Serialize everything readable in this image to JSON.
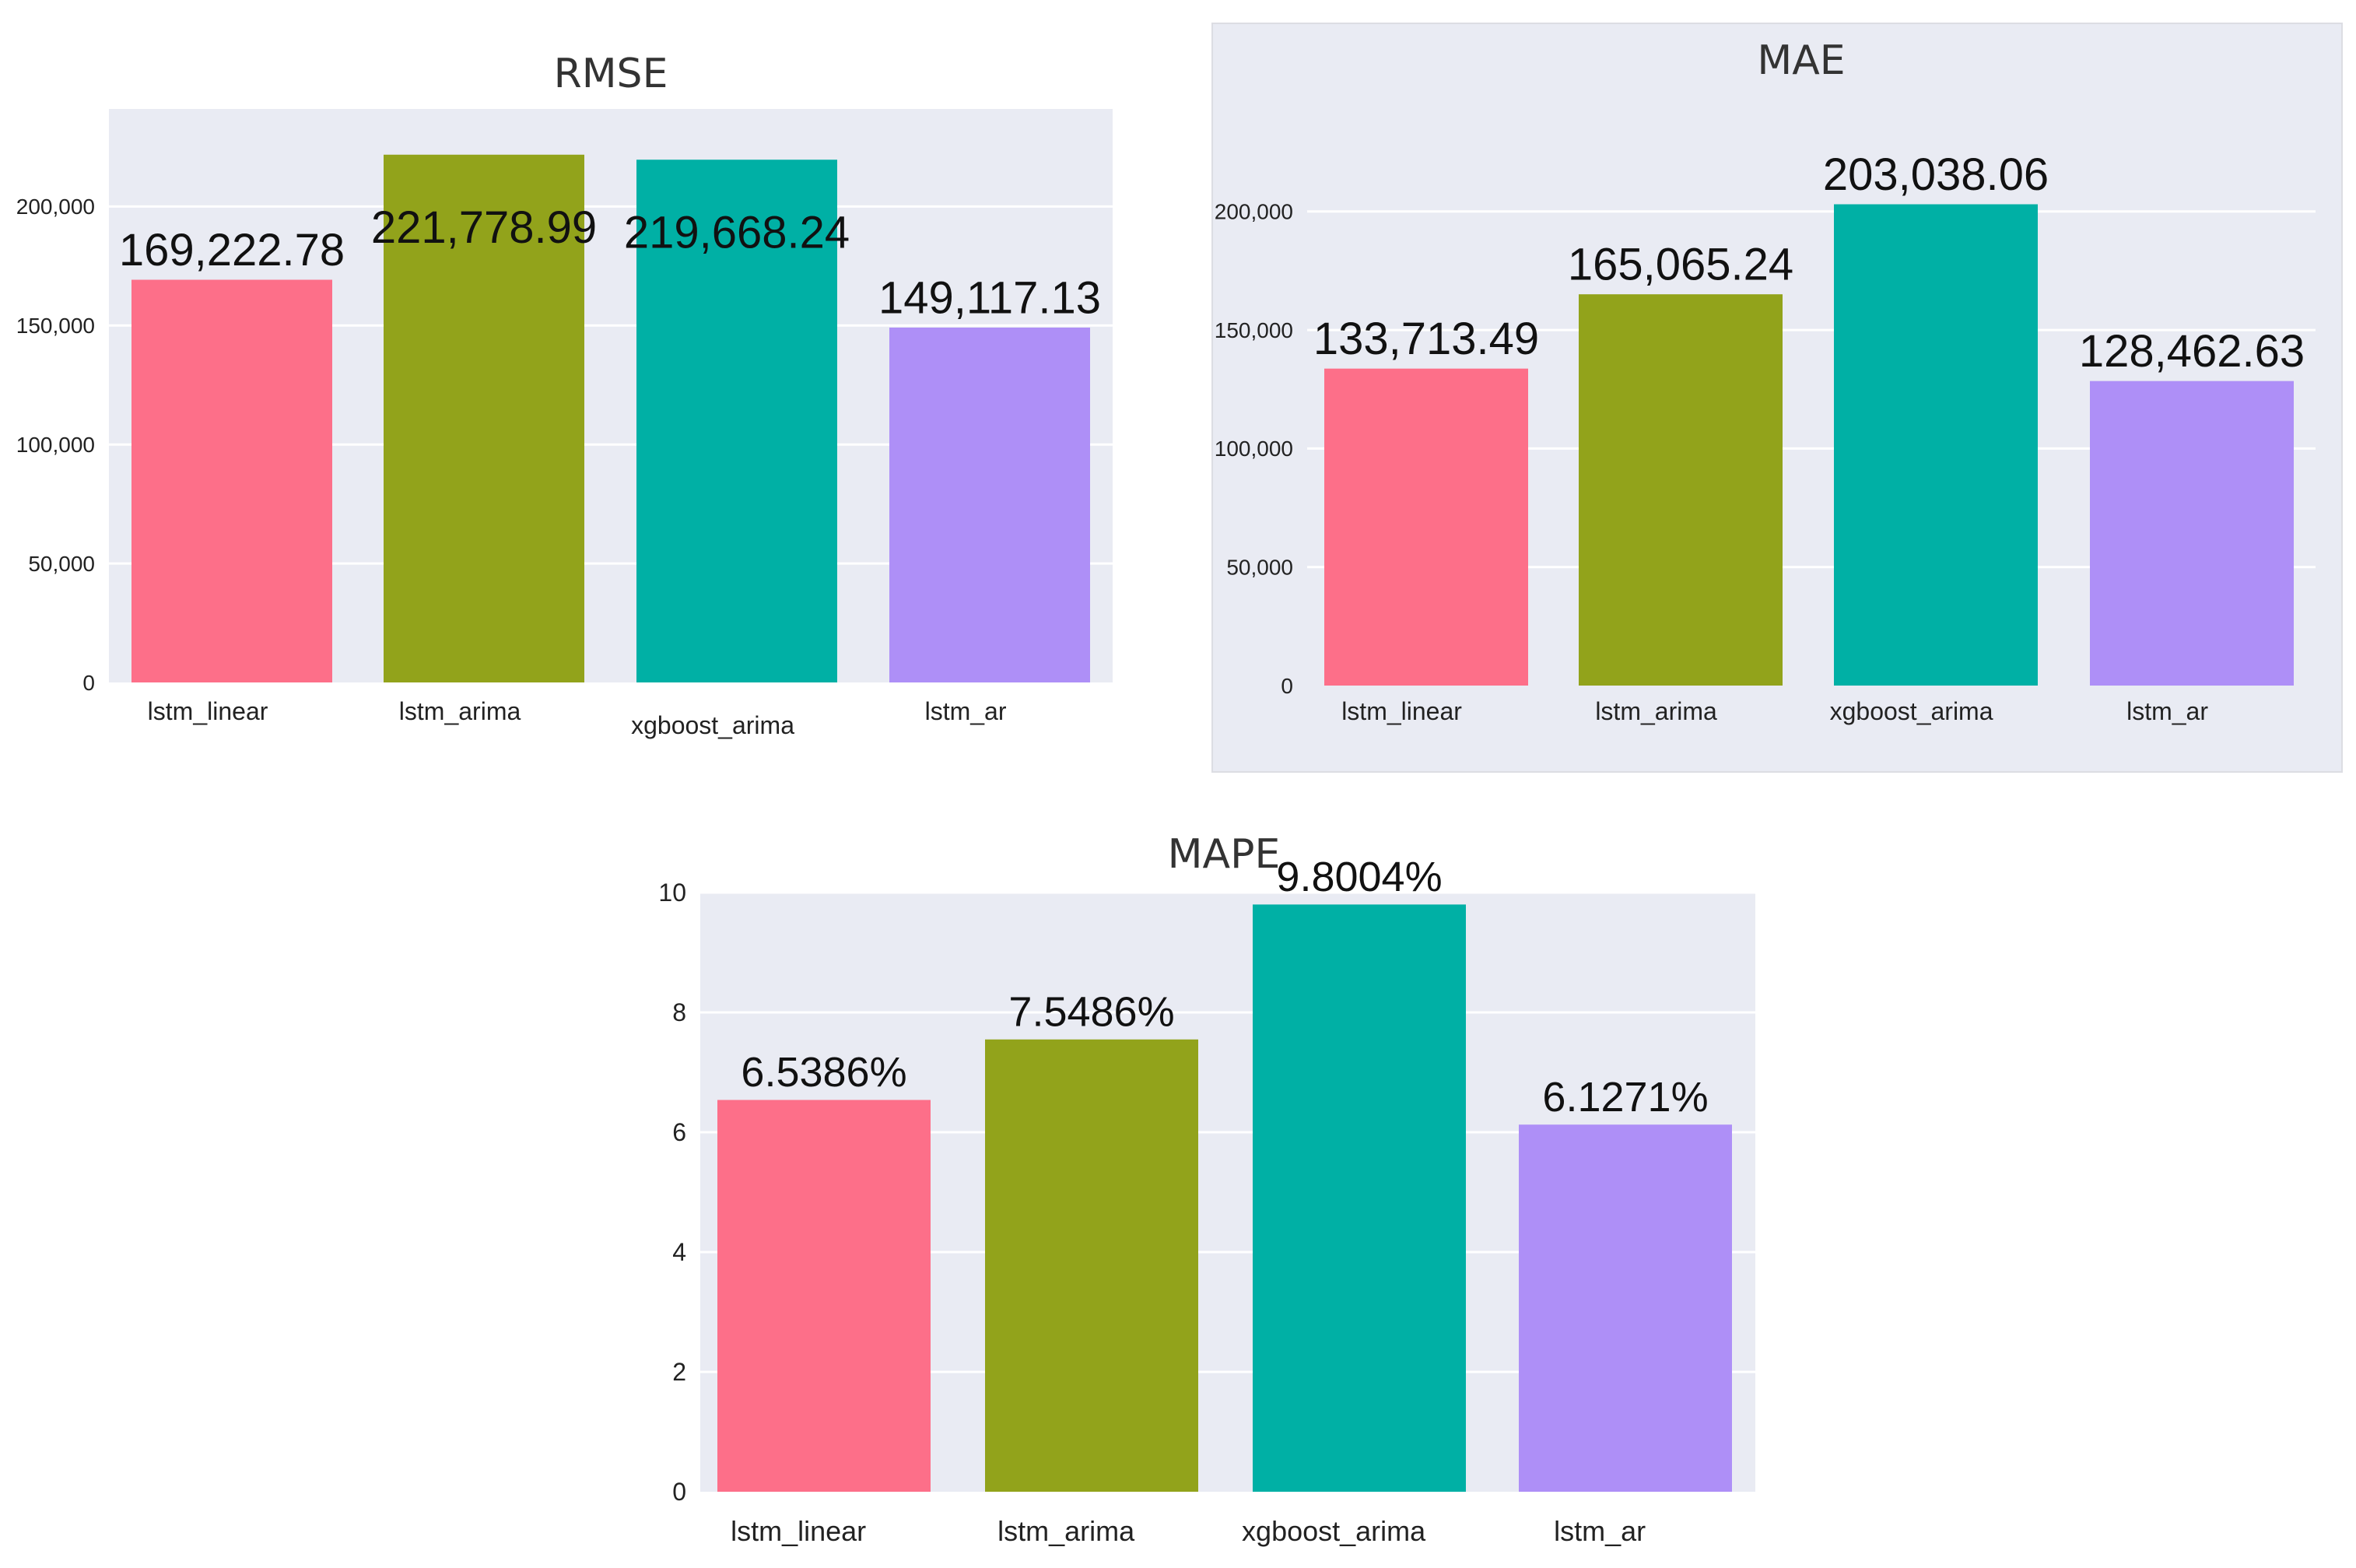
{
  "colors": {
    "plot_bg": "#e9ebf3",
    "grid": "#ffffff",
    "panel_bg": "#e9ebf3",
    "text": "#222222",
    "series": [
      "#fd6f89",
      "#92a31b",
      "#00b0a5",
      "#ae8ff7"
    ]
  },
  "chart_data": [
    {
      "id": "rmse",
      "type": "bar",
      "title": "RMSE",
      "categories": [
        "lstm_linear",
        "lstm_arima",
        "xgboost_arima",
        "lstm_ar"
      ],
      "values": [
        169222.78,
        221778.99,
        219668.24,
        149117.13
      ],
      "value_labels": [
        "169,222.78",
        "221,778.99",
        "219,668.24",
        "149,117.13"
      ],
      "yticks": [
        0,
        50000,
        100000,
        150000,
        200000
      ],
      "ytick_labels": [
        "0",
        "50,000",
        "100,000",
        "150,000",
        "200,000"
      ],
      "ylim": [
        0,
        241000
      ],
      "xlabel": "",
      "ylabel": ""
    },
    {
      "id": "mae",
      "type": "bar",
      "title": "MAE",
      "categories": [
        "lstm_linear",
        "lstm_arima",
        "xgboost_arima",
        "lstm_ar"
      ],
      "values": [
        133713.49,
        165065.24,
        203038.06,
        128462.63
      ],
      "value_labels": [
        "133,713.49",
        "165,065.24",
        "203,038.06",
        "128,462.63"
      ],
      "yticks": [
        0,
        50000,
        100000,
        150000,
        200000
      ],
      "ytick_labels": [
        "0",
        "50,000",
        "100,000",
        "150,000",
        "200,000"
      ],
      "ylim": [
        0,
        238000
      ],
      "xlabel": "",
      "ylabel": ""
    },
    {
      "id": "mape",
      "type": "bar",
      "title": "MAPE",
      "categories": [
        "lstm_linear",
        "lstm_arima",
        "xgboost_arima",
        "lstm_ar"
      ],
      "values": [
        6.5386,
        7.5486,
        9.8004,
        6.1271
      ],
      "value_labels": [
        "6.5386%",
        "7.5486%",
        "9.8004%",
        "6.1271%"
      ],
      "yticks": [
        0,
        2,
        4,
        6,
        8,
        10
      ],
      "ytick_labels": [
        "0",
        "2",
        "4",
        "6",
        "8",
        "10"
      ],
      "ylim": [
        0,
        10
      ],
      "xlabel": "",
      "ylabel": ""
    }
  ]
}
